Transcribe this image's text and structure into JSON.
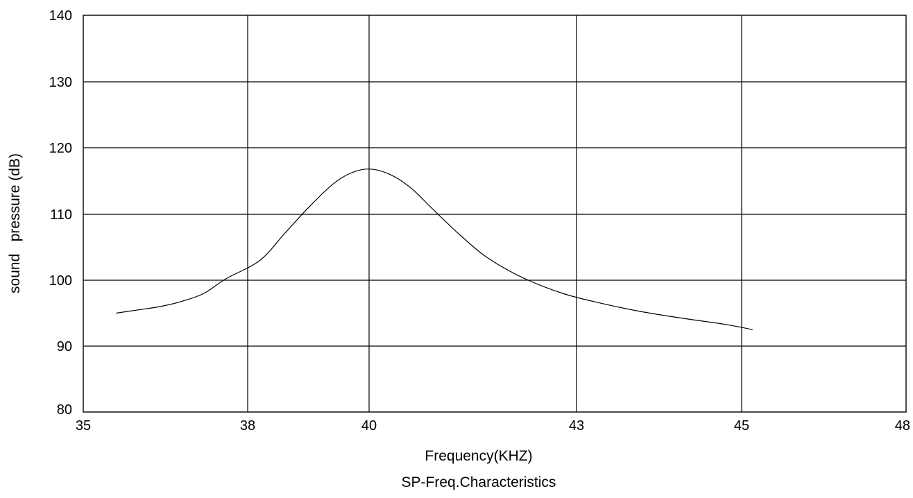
{
  "chart_data": {
    "type": "line",
    "title": "SP-Freq.Characteristics",
    "xlabel": "Frequency(KHZ)",
    "ylabel": "sound   pressure (dB)",
    "x_ticks": [
      35,
      38,
      40,
      43,
      45,
      48
    ],
    "x_tick_labels": [
      "35",
      "38",
      "40",
      "43",
      "45",
      "48"
    ],
    "y_ticks": [
      80,
      90,
      100,
      110,
      120,
      130,
      140
    ],
    "y_tick_labels": [
      "80",
      "90",
      "100",
      "110",
      "120",
      "130",
      "140"
    ],
    "ylim": [
      80,
      140
    ],
    "grid": true,
    "series": [
      {
        "points": [
          [
            35.6,
            95.0
          ],
          [
            36.0,
            95.5
          ],
          [
            36.4,
            96.0
          ],
          [
            36.8,
            96.8
          ],
          [
            37.2,
            98.0
          ],
          [
            37.6,
            100.2
          ],
          [
            38.2,
            103.0
          ],
          [
            38.6,
            107.0
          ],
          [
            39.0,
            111.0
          ],
          [
            39.4,
            114.5
          ],
          [
            39.7,
            116.2
          ],
          [
            40.0,
            116.8
          ],
          [
            40.3,
            116.0
          ],
          [
            40.6,
            114.0
          ],
          [
            40.9,
            111.0
          ],
          [
            41.3,
            107.0
          ],
          [
            41.7,
            103.5
          ],
          [
            42.2,
            100.5
          ],
          [
            42.8,
            98.0
          ],
          [
            43.3,
            96.5
          ],
          [
            43.8,
            95.2
          ],
          [
            44.3,
            94.2
          ],
          [
            44.8,
            93.3
          ],
          [
            45.2,
            92.5
          ]
        ]
      }
    ]
  }
}
